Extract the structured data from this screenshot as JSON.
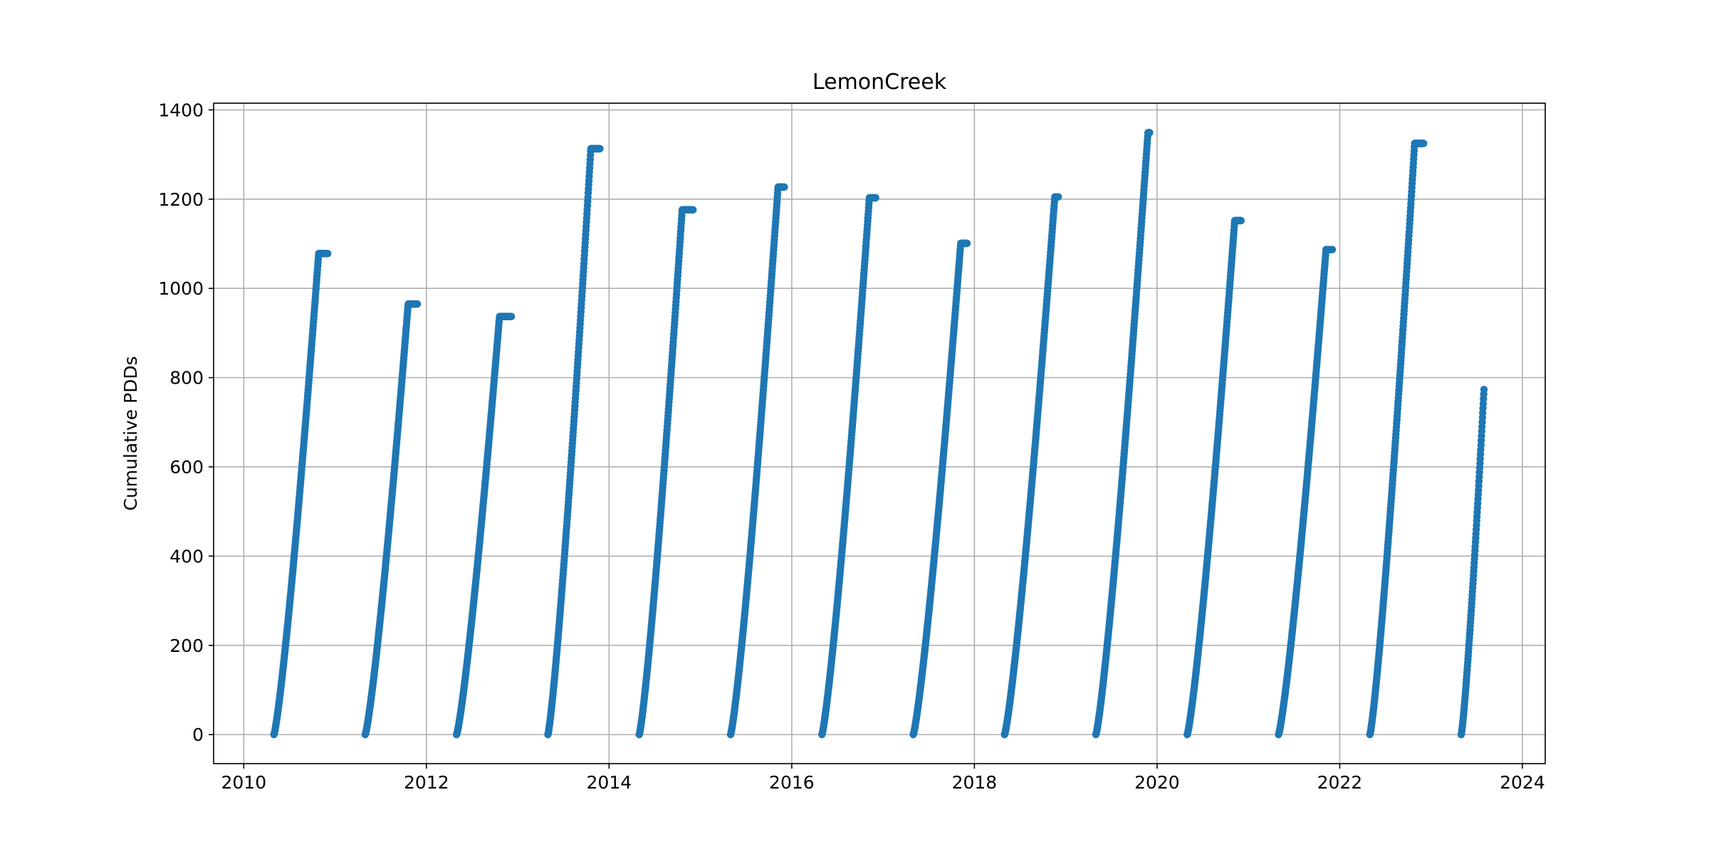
{
  "chart_data": {
    "type": "scatter",
    "title": "LemonCreek",
    "xlabel": "",
    "ylabel": "Cumulative PDDs",
    "xlim": [
      2009.67,
      2024.25
    ],
    "ylim": [
      -65,
      1415
    ],
    "x_ticks": [
      "2010",
      "2012",
      "2014",
      "2016",
      "2018",
      "2020",
      "2022",
      "2024"
    ],
    "y_ticks": [
      "0",
      "200",
      "400",
      "600",
      "800",
      "1000",
      "1200",
      "1400"
    ],
    "grid": true,
    "marker_color": "#1f77b4",
    "seasons": [
      {
        "start": 2010.33,
        "end": 2010.92,
        "final": 1078,
        "peak_t": 2010.82
      },
      {
        "start": 2011.33,
        "end": 2011.9,
        "final": 965,
        "peak_t": 2011.8
      },
      {
        "start": 2012.33,
        "end": 2012.93,
        "final": 937,
        "peak_t": 2012.8
      },
      {
        "start": 2013.33,
        "end": 2013.9,
        "final": 1313,
        "peak_t": 2013.8
      },
      {
        "start": 2014.33,
        "end": 2014.92,
        "final": 1176,
        "peak_t": 2014.8
      },
      {
        "start": 2015.33,
        "end": 2015.92,
        "final": 1227,
        "peak_t": 2015.85
      },
      {
        "start": 2016.33,
        "end": 2016.92,
        "final": 1203,
        "peak_t": 2016.85
      },
      {
        "start": 2017.33,
        "end": 2017.92,
        "final": 1101,
        "peak_t": 2017.85
      },
      {
        "start": 2018.33,
        "end": 2018.92,
        "final": 1205,
        "peak_t": 2018.88
      },
      {
        "start": 2019.33,
        "end": 2019.92,
        "final": 1349,
        "peak_t": 2019.9
      },
      {
        "start": 2020.33,
        "end": 2020.92,
        "final": 1152,
        "peak_t": 2020.85
      },
      {
        "start": 2021.33,
        "end": 2021.92,
        "final": 1087,
        "peak_t": 2021.85
      },
      {
        "start": 2022.33,
        "end": 2022.92,
        "final": 1325,
        "peak_t": 2022.82
      },
      {
        "start": 2023.33,
        "end": 2023.58,
        "final": 776,
        "peak_t": 2023.58
      }
    ]
  }
}
